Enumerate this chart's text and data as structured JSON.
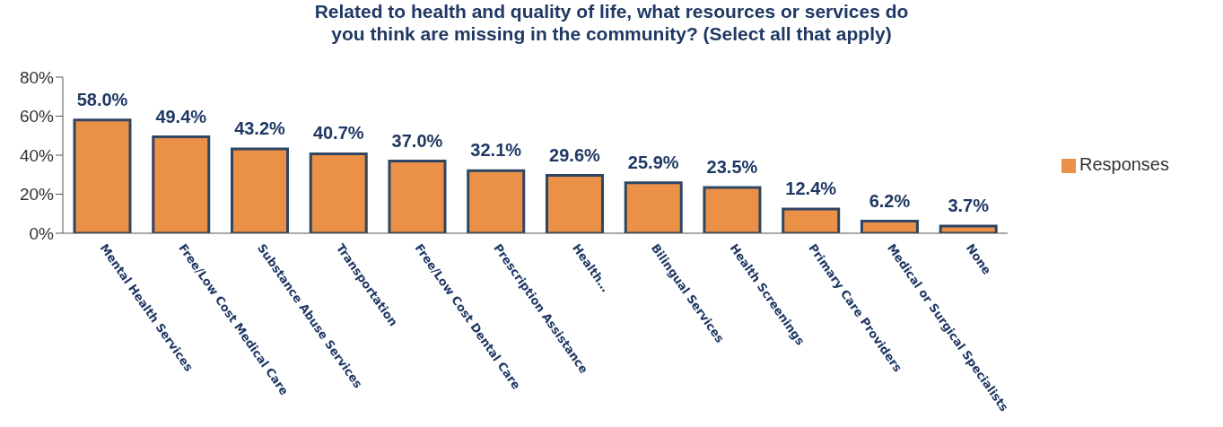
{
  "chart_data": {
    "type": "bar",
    "title": "Related to health and quality of life, what resources or services do you think are missing in the community? (Select all that apply)",
    "categories": [
      "Mental Health Services",
      "Free/Low Cost Medical Care",
      "Substance Abuse Services",
      "Transportation",
      "Free/Low Cost Dental Care",
      "Prescription Assistance",
      "Health…",
      "Bilingual Services",
      "Health Screenings",
      "Primary Care Providers",
      "Medical or Surgical Specialists",
      "None"
    ],
    "series": [
      {
        "name": "Responses",
        "color": "#eb9147",
        "values": [
          58.0,
          49.4,
          43.2,
          40.7,
          37.0,
          32.1,
          29.6,
          25.9,
          23.5,
          12.4,
          6.2,
          3.7
        ],
        "value_labels": [
          "58.0%",
          "49.4%",
          "43.2%",
          "40.7%",
          "37.0%",
          "32.1%",
          "29.6%",
          "25.9%",
          "23.5%",
          "12.4%",
          "6.2%",
          "3.7%"
        ]
      }
    ],
    "ylim": [
      0,
      80
    ],
    "yticks": [
      {
        "value": 0,
        "label": "0%"
      },
      {
        "value": 20,
        "label": "20%"
      },
      {
        "value": 40,
        "label": "40%"
      },
      {
        "value": 60,
        "label": "60%"
      },
      {
        "value": 80,
        "label": "80%"
      }
    ],
    "grid": false,
    "legend": "right"
  }
}
